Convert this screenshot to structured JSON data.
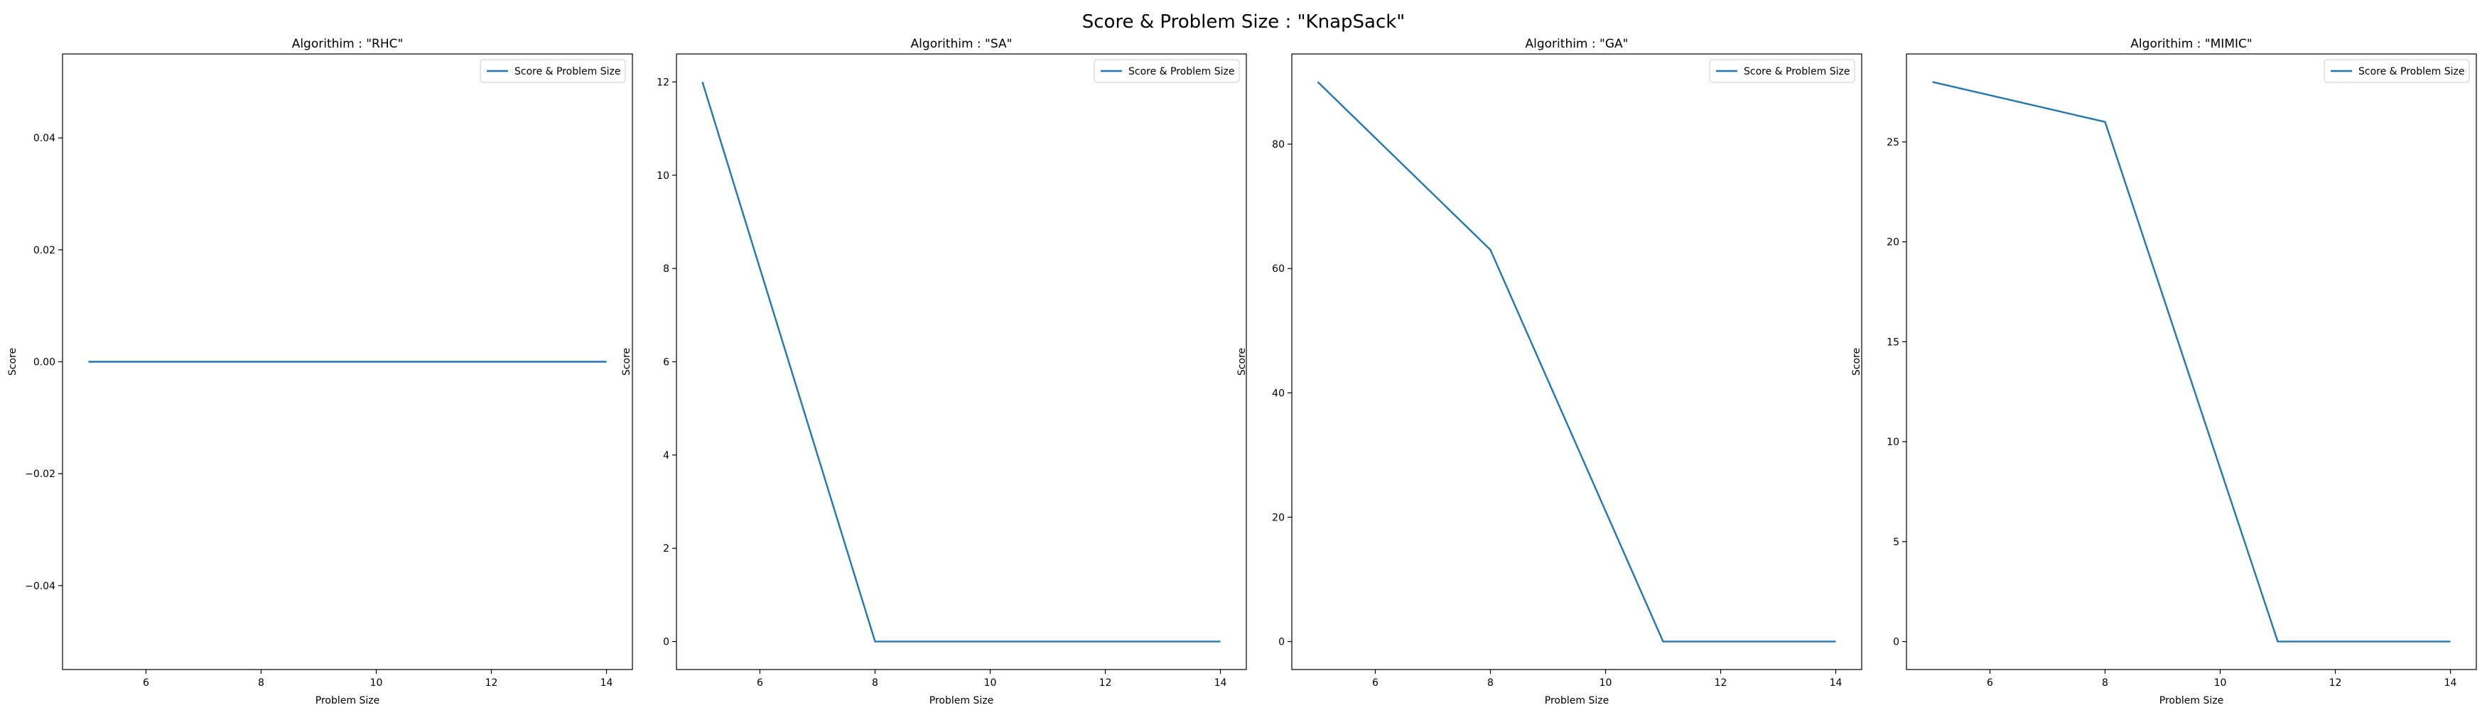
{
  "figure": {
    "suptitle": "Score & Problem Size : \"KnapSack\""
  },
  "colors": {
    "line": "#1f77b4",
    "axes": "#000000",
    "legend_border": "#cccccc",
    "background": "#ffffff"
  },
  "chart_data": [
    {
      "type": "line",
      "title": "Algorithim : \"RHC\"",
      "xlabel": "Problem Size",
      "ylabel": "Score",
      "xlim": [
        4.55,
        14.45
      ],
      "ylim": [
        -0.055,
        0.055
      ],
      "xticks": [
        6,
        8,
        10,
        12,
        14
      ],
      "xtick_labels": [
        "6",
        "8",
        "10",
        "12",
        "14"
      ],
      "yticks": [
        -0.04,
        -0.02,
        0.0,
        0.02,
        0.04
      ],
      "ytick_labels": [
        "−0.04",
        "−0.02",
        "0.00",
        "0.02",
        "0.04"
      ],
      "grid": false,
      "legend_position": "upper right",
      "series": [
        {
          "name": "Score & Problem Size",
          "x": [
            5,
            8,
            11,
            14
          ],
          "y": [
            0,
            0,
            0,
            0
          ]
        }
      ]
    },
    {
      "type": "line",
      "title": "Algorithim : \"SA\"",
      "xlabel": "Problem Size",
      "ylabel": "Score",
      "xlim": [
        4.55,
        14.45
      ],
      "ylim": [
        -0.6,
        12.6
      ],
      "xticks": [
        6,
        8,
        10,
        12,
        14
      ],
      "xtick_labels": [
        "6",
        "8",
        "10",
        "12",
        "14"
      ],
      "yticks": [
        0,
        2,
        4,
        6,
        8,
        10,
        12
      ],
      "ytick_labels": [
        "0",
        "2",
        "4",
        "6",
        "8",
        "10",
        "12"
      ],
      "grid": false,
      "legend_position": "upper right",
      "series": [
        {
          "name": "Score & Problem Size",
          "x": [
            5,
            8,
            11,
            14
          ],
          "y": [
            12,
            0,
            0,
            0
          ]
        }
      ]
    },
    {
      "type": "line",
      "title": "Algorithim : \"GA\"",
      "xlabel": "Problem Size",
      "ylabel": "Score",
      "xlim": [
        4.55,
        14.45
      ],
      "ylim": [
        -4.5,
        94.5
      ],
      "xticks": [
        6,
        8,
        10,
        12,
        14
      ],
      "xtick_labels": [
        "6",
        "8",
        "10",
        "12",
        "14"
      ],
      "yticks": [
        0,
        20,
        40,
        60,
        80
      ],
      "ytick_labels": [
        "0",
        "20",
        "40",
        "60",
        "80"
      ],
      "grid": false,
      "legend_position": "upper right",
      "series": [
        {
          "name": "Score & Problem Size",
          "x": [
            5,
            8,
            11,
            14
          ],
          "y": [
            90,
            63,
            0,
            0
          ]
        }
      ]
    },
    {
      "type": "line",
      "title": "Algorithim : \"MIMIC\"",
      "xlabel": "Problem Size",
      "ylabel": "Score",
      "xlim": [
        4.55,
        14.45
      ],
      "ylim": [
        -1.4,
        29.4
      ],
      "xticks": [
        6,
        8,
        10,
        12,
        14
      ],
      "xtick_labels": [
        "6",
        "8",
        "10",
        "12",
        "14"
      ],
      "yticks": [
        0,
        5,
        10,
        15,
        20,
        25
      ],
      "ytick_labels": [
        "0",
        "5",
        "10",
        "15",
        "20",
        "25"
      ],
      "grid": false,
      "legend_position": "upper right",
      "series": [
        {
          "name": "Score & Problem Size",
          "x": [
            5,
            8,
            11,
            14
          ],
          "y": [
            28,
            26,
            0,
            0
          ]
        }
      ]
    }
  ]
}
